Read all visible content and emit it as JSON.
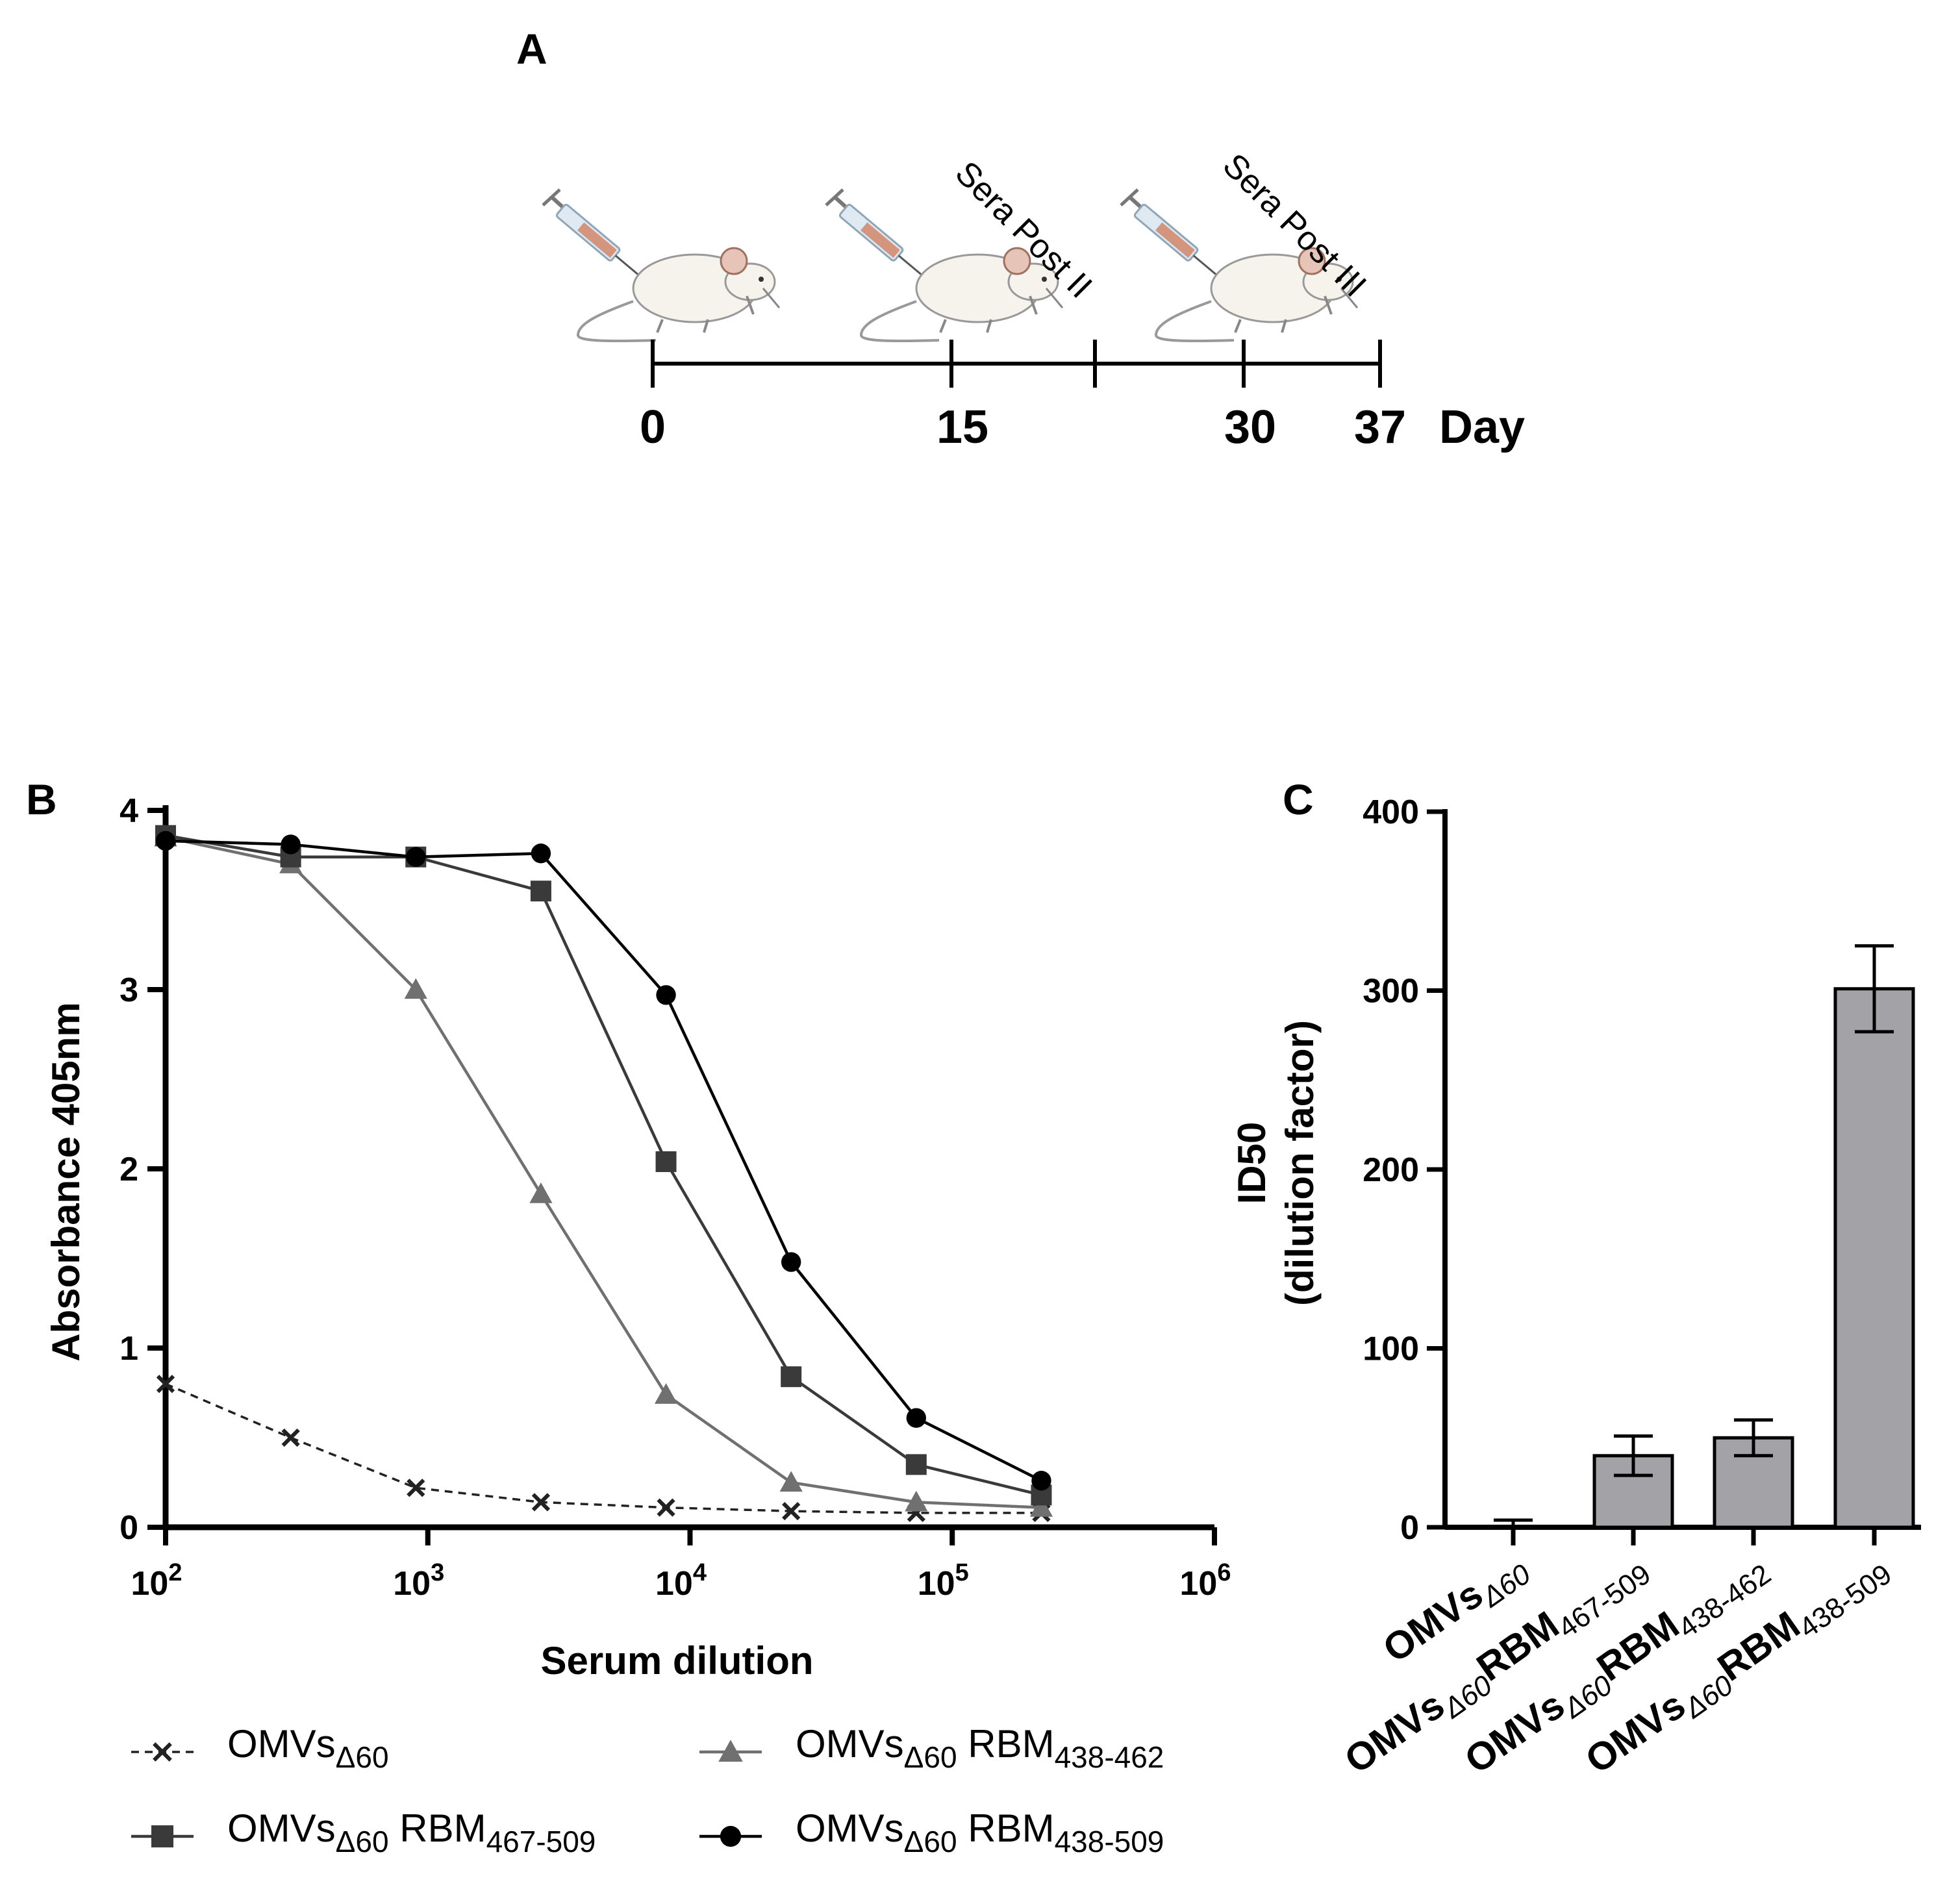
{
  "panelA": {
    "letter": "A",
    "days": [
      "0",
      "15",
      "30",
      "37"
    ],
    "day_label": "Day",
    "sera_labels": [
      "Sera Post II",
      "Sera Post III"
    ],
    "icons": [
      "syringe-mouse-icon",
      "syringe-mouse-icon",
      "syringe-mouse-icon"
    ]
  },
  "chart_data": [
    {
      "panel": "B",
      "type": "line",
      "x_scale": "log",
      "xlabel": "Serum dilution",
      "ylabel": "Absorbance 405nm",
      "xlim": [
        100,
        1000000
      ],
      "ylim": [
        0,
        4
      ],
      "x_ticks": [
        {
          "base": "10",
          "exp": "2"
        },
        {
          "base": "10",
          "exp": "3"
        },
        {
          "base": "10",
          "exp": "4"
        },
        {
          "base": "10",
          "exp": "5"
        },
        {
          "base": "10",
          "exp": "6"
        }
      ],
      "y_ticks": [
        "0",
        "1",
        "2",
        "3",
        "4"
      ],
      "x": [
        100,
        300,
        900,
        2700,
        8100,
        24300,
        72900,
        218700
      ],
      "series": [
        {
          "name": "OMVsΔ60",
          "main": "OMVs",
          "sub": "Δ60",
          "suffix": "",
          "suffix_sub": "",
          "marker": "x",
          "dashed": true,
          "color": "#222222",
          "values": [
            0.8,
            0.5,
            0.22,
            0.14,
            0.11,
            0.09,
            0.08,
            0.08
          ]
        },
        {
          "name": "OMVsΔ60 RBM438-462",
          "main": "OMVs",
          "sub": "Δ60",
          "suffix": " RBM",
          "suffix_sub": "438-462",
          "marker": "triangle",
          "dashed": false,
          "color": "#707070",
          "values": [
            3.85,
            3.7,
            3.0,
            1.86,
            0.74,
            0.25,
            0.14,
            0.11
          ]
        },
        {
          "name": "OMVsΔ60 RBM467-509",
          "main": "OMVs",
          "sub": "Δ60",
          "suffix": " RBM",
          "suffix_sub": "467-509",
          "marker": "square",
          "dashed": false,
          "color": "#3a3a3a",
          "values": [
            3.86,
            3.74,
            3.74,
            3.55,
            2.04,
            0.84,
            0.35,
            0.18
          ]
        },
        {
          "name": "OMVsΔ60 RBM438-509",
          "main": "OMVs",
          "sub": "Δ60",
          "suffix": " RBM",
          "suffix_sub": "438-509",
          "marker": "circle",
          "dashed": false,
          "color": "#000000",
          "values": [
            3.83,
            3.81,
            3.74,
            3.76,
            2.97,
            1.48,
            0.61,
            0.26
          ]
        }
      ]
    },
    {
      "panel": "C",
      "type": "bar",
      "ylabel": "ID50",
      "ylabel2": "(dilution factor)",
      "ylim": [
        0,
        400
      ],
      "y_ticks": [
        "0",
        "100",
        "200",
        "300",
        "400"
      ],
      "categories": [
        {
          "main": "OMVs",
          "sub": "Δ60",
          "rbm": "",
          "rbm_sub": ""
        },
        {
          "main": "OMVs",
          "sub": "Δ60",
          "rbm": "RBM",
          "rbm_sub": "467-509"
        },
        {
          "main": "OMVs",
          "sub": "Δ60",
          "rbm": "RBM",
          "rbm_sub": "438-462"
        },
        {
          "main": "OMVs",
          "sub": "Δ60",
          "rbm": "RBM",
          "rbm_sub": "438-509"
        }
      ],
      "values": [
        0,
        40,
        50,
        301
      ],
      "errors": [
        4,
        11,
        10,
        24
      ],
      "bar_color": "#a3a3a7"
    }
  ]
}
